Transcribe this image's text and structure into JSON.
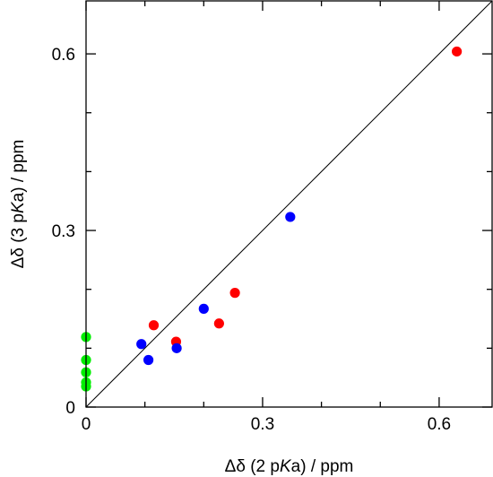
{
  "chart_data": {
    "type": "scatter",
    "xlabel": {
      "prefix": "Δδ (2 p",
      "italic": "K",
      "suffix": "a) / ppm"
    },
    "ylabel": {
      "prefix": "Δδ (3 p",
      "italic": "K",
      "suffix": "a) / ppm"
    },
    "xlim": [
      0,
      0.69
    ],
    "ylim": [
      0,
      0.69
    ],
    "xticks": [
      {
        "value": 0,
        "label": "0"
      },
      {
        "value": 0.3,
        "label": "0.3"
      },
      {
        "value": 0.6,
        "label": "0.6"
      }
    ],
    "yticks": [
      {
        "value": 0,
        "label": "0"
      },
      {
        "value": 0.3,
        "label": "0.3"
      },
      {
        "value": 0.6,
        "label": "0.6"
      }
    ],
    "minor_tick_step": 0.1,
    "grid": false,
    "diagonal_line": {
      "from": [
        0,
        0
      ],
      "to": [
        0.69,
        0.69
      ],
      "color": "#000000"
    },
    "series": [
      {
        "color": "#ff0000",
        "points": [
          {
            "x": 0.63,
            "y": 0.604
          },
          {
            "x": 0.253,
            "y": 0.194
          },
          {
            "x": 0.226,
            "y": 0.142
          },
          {
            "x": 0.115,
            "y": 0.139
          },
          {
            "x": 0.153,
            "y": 0.111
          }
        ]
      },
      {
        "color": "#0000ff",
        "points": [
          {
            "x": 0.347,
            "y": 0.323
          },
          {
            "x": 0.2,
            "y": 0.167
          },
          {
            "x": 0.094,
            "y": 0.107
          },
          {
            "x": 0.154,
            "y": 0.1
          },
          {
            "x": 0.106,
            "y": 0.08
          }
        ]
      },
      {
        "color": "#00ee00",
        "points": [
          {
            "x": 0,
            "y": 0.119
          },
          {
            "x": 0,
            "y": 0.08
          },
          {
            "x": 0,
            "y": 0.059
          },
          {
            "x": 0,
            "y": 0.042
          },
          {
            "x": 0,
            "y": 0.035
          }
        ]
      }
    ]
  }
}
